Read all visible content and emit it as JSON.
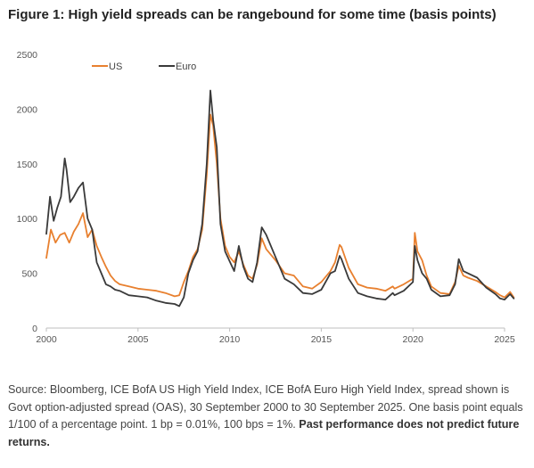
{
  "title": "Figure 1: High yield spreads can be rangebound for some time (basis points)",
  "source": {
    "text": "Source: Bloomberg, ICE BofA US High Yield Index, ICE BofA Euro High Yield Index, spread shown is Govt option-adjusted spread (OAS), 30 September 2000 to 30 September 2025. One basis point equals 1/100 of a percentage point. 1 bp = 0.01%, 100 bps = 1%.",
    "disclaimer": "Past performance does not predict future returns."
  },
  "colors": {
    "US": "#e8802f",
    "Euro": "#3a3a3a",
    "axis": "#bfbfbf"
  },
  "chart_data": {
    "type": "line",
    "title": "Figure 1: High yield spreads can be rangebound for some time (basis points)",
    "xlabel": "",
    "ylabel": "",
    "xlim": [
      2000,
      2025
    ],
    "ylim": [
      0,
      2500
    ],
    "x_ticks": [
      "2000",
      "2005",
      "2010",
      "2015",
      "2020",
      "2025"
    ],
    "y_ticks": [
      "0",
      "500",
      "1000",
      "1500",
      "2000",
      "2500"
    ],
    "legend": {
      "position": "top-left",
      "entries": [
        "US",
        "Euro"
      ]
    },
    "grid": false,
    "series": [
      {
        "name": "US",
        "x": [
          2000.0,
          2000.25,
          2000.5,
          2000.75,
          2001.0,
          2001.25,
          2001.5,
          2001.75,
          2002.0,
          2002.25,
          2002.5,
          2002.75,
          2003.0,
          2003.25,
          2003.5,
          2003.75,
          2004.0,
          2004.5,
          2005.0,
          2005.5,
          2006.0,
          2006.5,
          2007.0,
          2007.25,
          2007.5,
          2007.75,
          2008.0,
          2008.25,
          2008.5,
          2008.75,
          2008.95,
          2009.1,
          2009.3,
          2009.5,
          2009.75,
          2010.0,
          2010.25,
          2010.5,
          2010.75,
          2011.0,
          2011.25,
          2011.5,
          2011.75,
          2012.0,
          2012.5,
          2013.0,
          2013.5,
          2014.0,
          2014.5,
          2015.0,
          2015.5,
          2015.75,
          2016.0,
          2016.1,
          2016.5,
          2017.0,
          2017.5,
          2018.0,
          2018.5,
          2018.9,
          2019.0,
          2019.5,
          2020.0,
          2020.1,
          2020.25,
          2020.5,
          2020.75,
          2021.0,
          2021.5,
          2022.0,
          2022.3,
          2022.5,
          2022.75,
          2023.0,
          2023.5,
          2024.0,
          2024.5,
          2024.75,
          2025.0,
          2025.3,
          2025.5
        ],
        "y": [
          640,
          900,
          780,
          850,
          870,
          780,
          880,
          950,
          1050,
          830,
          900,
          750,
          650,
          560,
          480,
          430,
          400,
          380,
          360,
          350,
          340,
          320,
          290,
          300,
          420,
          520,
          650,
          720,
          900,
          1400,
          1950,
          1850,
          1500,
          1000,
          750,
          650,
          600,
          700,
          580,
          480,
          450,
          580,
          820,
          720,
          620,
          500,
          480,
          380,
          360,
          420,
          520,
          600,
          760,
          740,
          550,
          400,
          370,
          360,
          340,
          380,
          360,
          400,
          450,
          870,
          700,
          620,
          480,
          380,
          320,
          310,
          420,
          570,
          480,
          460,
          430,
          380,
          330,
          300,
          280,
          330,
          280
        ]
      },
      {
        "name": "Euro",
        "x": [
          2000.0,
          2000.2,
          2000.4,
          2000.6,
          2000.8,
          2001.0,
          2001.1,
          2001.3,
          2001.5,
          2001.75,
          2002.0,
          2002.25,
          2002.5,
          2002.75,
          2003.0,
          2003.25,
          2003.5,
          2003.75,
          2004.0,
          2004.5,
          2005.0,
          2005.5,
          2006.0,
          2006.5,
          2007.0,
          2007.25,
          2007.5,
          2007.75,
          2008.0,
          2008.25,
          2008.5,
          2008.75,
          2008.95,
          2009.1,
          2009.3,
          2009.5,
          2009.75,
          2010.0,
          2010.25,
          2010.5,
          2010.75,
          2011.0,
          2011.25,
          2011.5,
          2011.75,
          2012.0,
          2012.5,
          2013.0,
          2013.5,
          2014.0,
          2014.5,
          2015.0,
          2015.5,
          2015.75,
          2016.0,
          2016.1,
          2016.5,
          2017.0,
          2017.5,
          2018.0,
          2018.5,
          2018.9,
          2019.0,
          2019.5,
          2020.0,
          2020.1,
          2020.25,
          2020.5,
          2020.75,
          2021.0,
          2021.5,
          2022.0,
          2022.3,
          2022.5,
          2022.75,
          2023.0,
          2023.5,
          2024.0,
          2024.5,
          2024.75,
          2025.0,
          2025.3,
          2025.5
        ],
        "y": [
          860,
          1200,
          980,
          1100,
          1200,
          1550,
          1450,
          1150,
          1200,
          1280,
          1330,
          1000,
          900,
          600,
          500,
          400,
          380,
          350,
          340,
          300,
          290,
          280,
          250,
          230,
          220,
          200,
          280,
          500,
          620,
          700,
          950,
          1500,
          2170,
          1900,
          1650,
          950,
          700,
          610,
          520,
          750,
          560,
          450,
          420,
          600,
          920,
          850,
          650,
          450,
          400,
          320,
          310,
          350,
          500,
          520,
          660,
          630,
          450,
          320,
          290,
          270,
          260,
          320,
          300,
          340,
          420,
          750,
          620,
          500,
          450,
          350,
          290,
          300,
          400,
          630,
          520,
          500,
          460,
          370,
          310,
          270,
          260,
          310,
          270
        ]
      }
    ]
  }
}
